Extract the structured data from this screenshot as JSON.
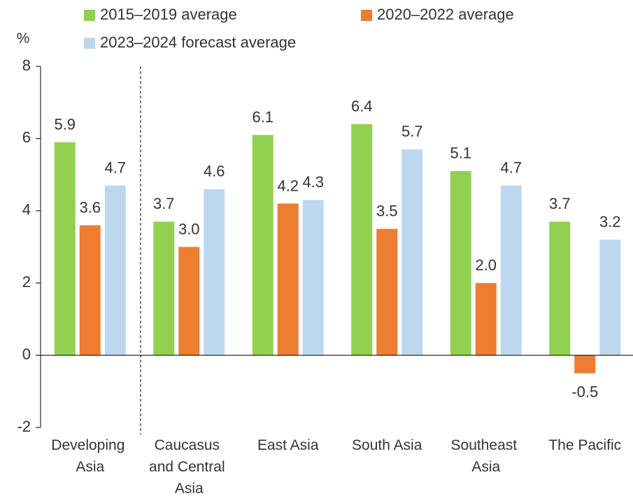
{
  "chart_data": {
    "type": "bar",
    "y_unit": "%",
    "categories": [
      "Developing Asia",
      "Caucasus and Central Asia",
      "East Asia",
      "South Asia",
      "Southeast Asia",
      "The Pacific"
    ],
    "series": [
      {
        "name": "2015–2019 average",
        "color": "#92d050",
        "values": [
          5.9,
          3.7,
          6.1,
          6.4,
          5.1,
          3.7
        ],
        "value_labels": [
          "5.9",
          "3.7",
          "6.1",
          "6.4",
          "5.1",
          "3.7"
        ]
      },
      {
        "name": "2020–2022 average",
        "color": "#ed7d31",
        "values": [
          3.6,
          3.0,
          4.2,
          3.5,
          2.0,
          -0.5
        ],
        "value_labels": [
          "3.6",
          "3.0",
          "4.2",
          "3.5",
          "2.0",
          "-0.5"
        ]
      },
      {
        "name": "2023–2024 forecast average",
        "color": "#bdd7ee",
        "values": [
          4.7,
          4.6,
          4.3,
          5.7,
          4.7,
          3.2
        ],
        "value_labels": [
          "4.7",
          "4.6",
          "4.3",
          "5.7",
          "4.7",
          "3.2"
        ]
      }
    ],
    "ylim": [
      -2,
      8
    ],
    "yticks": [
      -2,
      0,
      2,
      4,
      6,
      8
    ],
    "grid": false
  }
}
